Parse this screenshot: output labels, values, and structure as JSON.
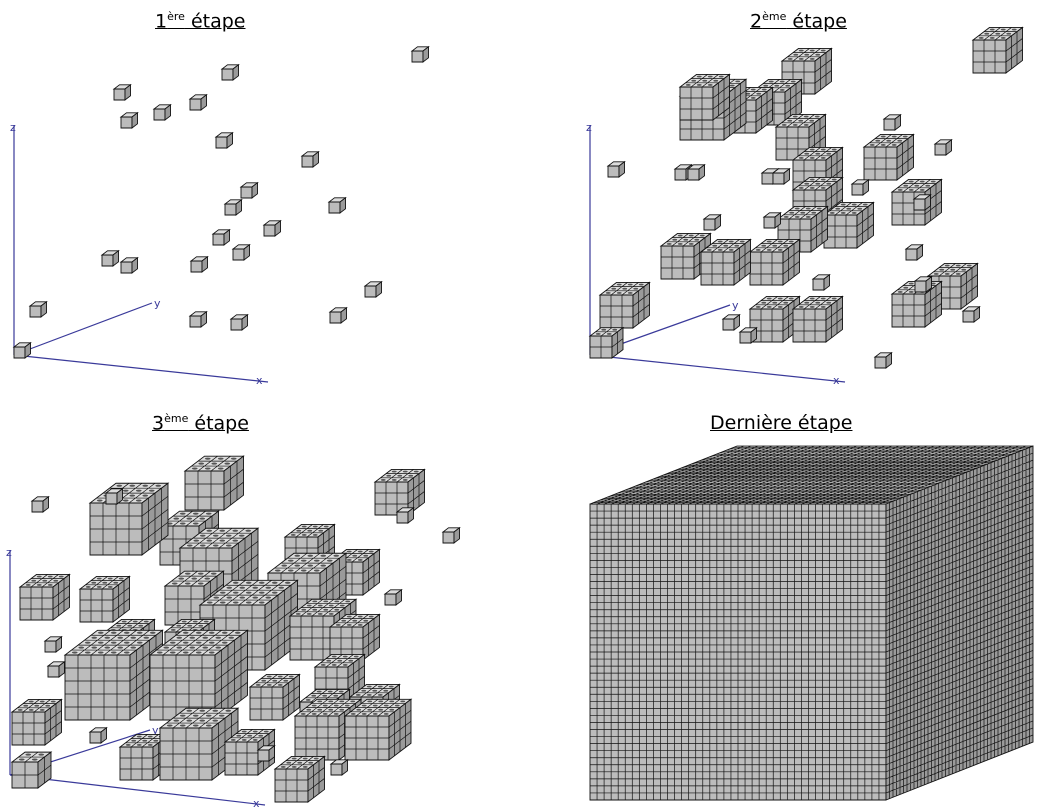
{
  "panels": [
    {
      "key": "p1",
      "title_num": "1",
      "title_sup": "ère",
      "title_text": " étape",
      "axes": {
        "z": "z",
        "y": "y",
        "x": "x"
      }
    },
    {
      "key": "p2",
      "title_num": "2",
      "title_sup": "ème",
      "title_text": " étape",
      "axes": {
        "z": "z",
        "y": "y",
        "x": "x"
      }
    },
    {
      "key": "p3",
      "title_num": "3",
      "title_sup": "ème",
      "title_text": " étape",
      "axes": {
        "z": "z",
        "y": "y",
        "x": "x"
      }
    },
    {
      "key": "p4",
      "title_num": "",
      "title_sup": "",
      "title_text": "Dernière étape"
    }
  ],
  "colors": {
    "cube_front": "#bcbcbc",
    "cube_top": "#dddddd",
    "cube_side": "#9a9a9a",
    "edge": "#111111",
    "axis": "#3a3a9a"
  }
}
